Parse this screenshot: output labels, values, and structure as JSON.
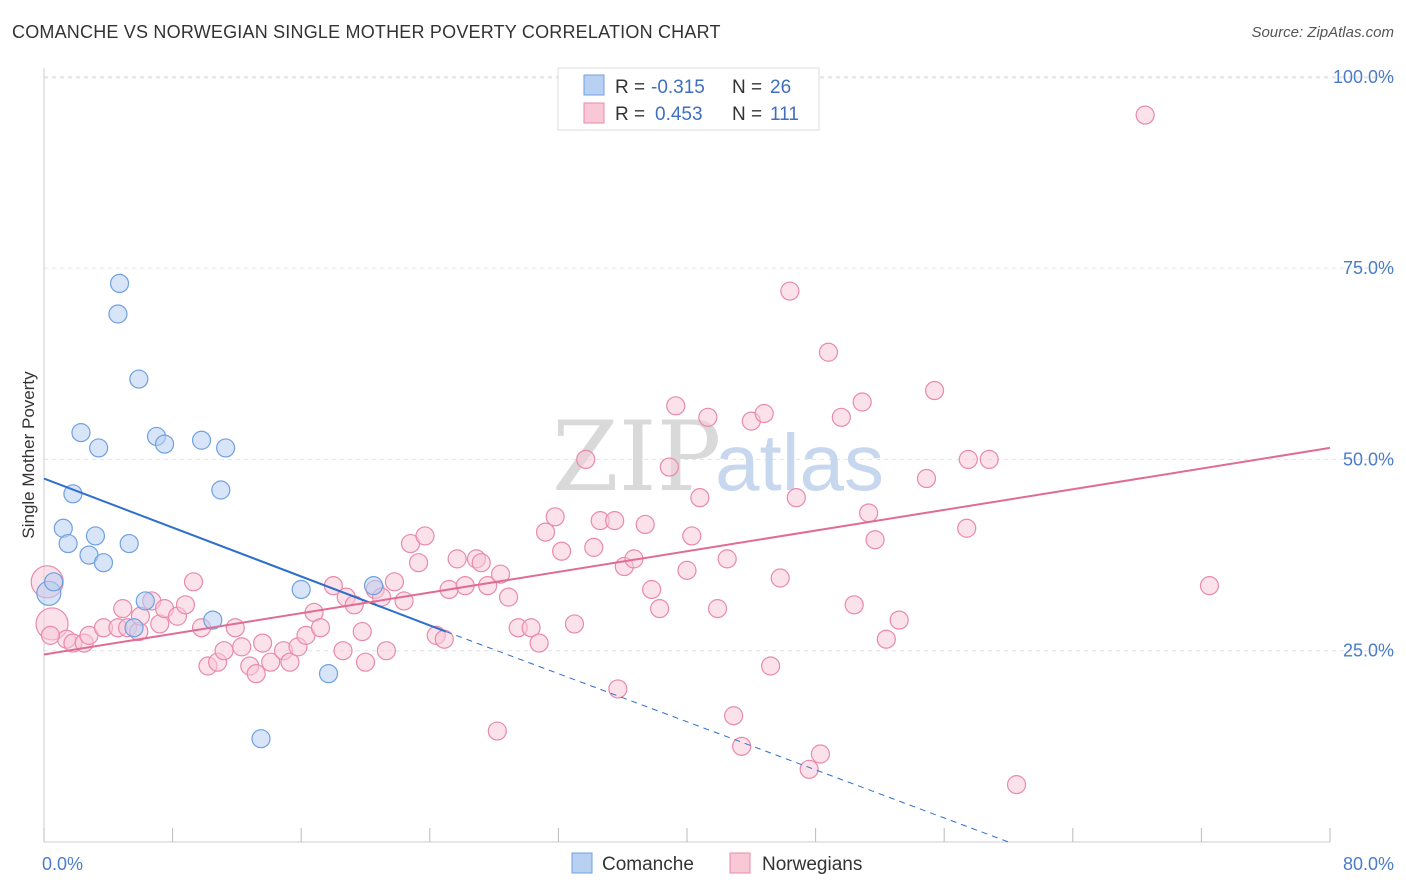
{
  "title": "COMANCHE VS NORWEGIAN SINGLE MOTHER POVERTY CORRELATION CHART",
  "source": "Source: ZipAtlas.com",
  "watermark": {
    "left": "ZIP",
    "right": "atlas"
  },
  "chart_data": {
    "type": "scatter",
    "ylabel": "Single Mother Poverty",
    "xlim": [
      0,
      80
    ],
    "ylim": [
      0,
      105
    ],
    "y_ticks": [
      {
        "value": 25,
        "label": "25.0%"
      },
      {
        "value": 50,
        "label": "50.0%"
      },
      {
        "value": 75,
        "label": "75.0%"
      },
      {
        "value": 100,
        "label": "100.0%"
      }
    ],
    "x_tick_labels": {
      "min": "0.0%",
      "max": "80.0%"
    },
    "legend": {
      "rows": [
        {
          "r_label": "R =",
          "r_value": "-0.315",
          "n_label": "N =",
          "n_value": "26"
        },
        {
          "r_label": "R =",
          "r_value": "0.453",
          "n_label": "N =",
          "n_value": "111"
        }
      ]
    },
    "series": [
      {
        "name": "Comanche",
        "color": "#6fa0e0",
        "fill": "#b8d0f2",
        "line_color": "#2f6fcc",
        "trend": {
          "x0": 0,
          "y0": 47.5,
          "x1": 25,
          "y1": 27.5,
          "dash_x1": 60,
          "dash_y1": 0
        },
        "points": [
          [
            0.3,
            32.5
          ],
          [
            0.6,
            34.0
          ],
          [
            1.2,
            41.0
          ],
          [
            1.5,
            39.0
          ],
          [
            1.8,
            45.5
          ],
          [
            2.3,
            53.5
          ],
          [
            2.8,
            37.5
          ],
          [
            3.2,
            40.0
          ],
          [
            3.4,
            51.5
          ],
          [
            3.7,
            36.5
          ],
          [
            4.6,
            69.0
          ],
          [
            4.7,
            73.0
          ],
          [
            5.3,
            39.0
          ],
          [
            5.6,
            28.0
          ],
          [
            5.9,
            60.5
          ],
          [
            6.3,
            31.5
          ],
          [
            7.0,
            53.0
          ],
          [
            7.5,
            52.0
          ],
          [
            9.8,
            52.5
          ],
          [
            10.5,
            29.0
          ],
          [
            11.0,
            46.0
          ],
          [
            11.3,
            51.5
          ],
          [
            13.5,
            13.5
          ],
          [
            16.0,
            33.0
          ],
          [
            17.7,
            22.0
          ],
          [
            20.5,
            33.5
          ]
        ]
      },
      {
        "name": "Norwegians",
        "color": "#e98aaa",
        "fill": "#f8c8d7",
        "line_color": "#e06c93",
        "trend": {
          "x0": 0,
          "y0": 24.5,
          "x1": 80,
          "y1": 51.5
        },
        "points": [
          [
            0.2,
            34.0
          ],
          [
            0.5,
            28.5
          ],
          [
            1.4,
            26.5
          ],
          [
            1.8,
            26.0
          ],
          [
            2.5,
            26.0
          ],
          [
            2.8,
            27.0
          ],
          [
            3.7,
            28.0
          ],
          [
            4.6,
            28.0
          ],
          [
            4.9,
            30.5
          ],
          [
            5.2,
            28.0
          ],
          [
            5.9,
            27.5
          ],
          [
            6.0,
            29.5
          ],
          [
            6.7,
            31.5
          ],
          [
            7.2,
            28.5
          ],
          [
            7.5,
            30.5
          ],
          [
            8.3,
            29.5
          ],
          [
            8.8,
            31.0
          ],
          [
            9.3,
            34.0
          ],
          [
            9.8,
            28.0
          ],
          [
            10.2,
            23.0
          ],
          [
            10.8,
            23.5
          ],
          [
            11.2,
            25.0
          ],
          [
            11.9,
            28.0
          ],
          [
            12.3,
            25.5
          ],
          [
            12.8,
            23.0
          ],
          [
            13.2,
            22.0
          ],
          [
            13.6,
            26.0
          ],
          [
            14.1,
            23.5
          ],
          [
            14.9,
            25.0
          ],
          [
            15.3,
            23.5
          ],
          [
            15.8,
            25.5
          ],
          [
            16.3,
            27.0
          ],
          [
            16.8,
            30.0
          ],
          [
            17.2,
            28.0
          ],
          [
            18.0,
            33.5
          ],
          [
            18.6,
            25.0
          ],
          [
            18.8,
            32.0
          ],
          [
            19.3,
            31.0
          ],
          [
            19.8,
            27.5
          ],
          [
            20.0,
            23.5
          ],
          [
            20.6,
            33.0
          ],
          [
            21.0,
            32.0
          ],
          [
            21.3,
            25.0
          ],
          [
            21.8,
            34.0
          ],
          [
            22.4,
            31.5
          ],
          [
            22.8,
            39.0
          ],
          [
            23.3,
            36.5
          ],
          [
            23.7,
            40.0
          ],
          [
            24.4,
            27.0
          ],
          [
            24.9,
            26.5
          ],
          [
            25.2,
            33.0
          ],
          [
            25.7,
            37.0
          ],
          [
            26.2,
            33.5
          ],
          [
            26.9,
            37.0
          ],
          [
            27.2,
            36.5
          ],
          [
            27.6,
            33.5
          ],
          [
            28.2,
            14.5
          ],
          [
            28.4,
            35.0
          ],
          [
            28.9,
            32.0
          ],
          [
            29.5,
            28.0
          ],
          [
            30.3,
            28.0
          ],
          [
            30.8,
            26.0
          ],
          [
            31.2,
            40.5
          ],
          [
            31.8,
            42.5
          ],
          [
            32.2,
            38.0
          ],
          [
            33.0,
            28.5
          ],
          [
            33.7,
            50.0
          ],
          [
            34.2,
            38.5
          ],
          [
            34.6,
            42.0
          ],
          [
            35.5,
            42.0
          ],
          [
            35.7,
            20.0
          ],
          [
            36.1,
            36.0
          ],
          [
            36.7,
            37.0
          ],
          [
            37.4,
            41.5
          ],
          [
            37.8,
            33.0
          ],
          [
            38.3,
            30.5
          ],
          [
            38.9,
            49.0
          ],
          [
            39.3,
            57.0
          ],
          [
            40.0,
            35.5
          ],
          [
            40.3,
            40.0
          ],
          [
            40.8,
            45.0
          ],
          [
            41.3,
            55.5
          ],
          [
            41.9,
            30.5
          ],
          [
            42.5,
            37.0
          ],
          [
            42.9,
            16.5
          ],
          [
            43.4,
            12.5
          ],
          [
            44.0,
            55.0
          ],
          [
            44.8,
            56.0
          ],
          [
            45.2,
            23.0
          ],
          [
            45.8,
            34.5
          ],
          [
            46.4,
            72.0
          ],
          [
            46.8,
            45.0
          ],
          [
            47.6,
            9.5
          ],
          [
            48.3,
            11.5
          ],
          [
            48.8,
            64.0
          ],
          [
            49.6,
            55.5
          ],
          [
            50.4,
            31.0
          ],
          [
            50.9,
            57.5
          ],
          [
            51.3,
            43.0
          ],
          [
            51.7,
            39.5
          ],
          [
            52.4,
            26.5
          ],
          [
            53.2,
            29.0
          ],
          [
            54.9,
            47.5
          ],
          [
            55.4,
            59.0
          ],
          [
            57.4,
            41.0
          ],
          [
            57.5,
            50.0
          ],
          [
            58.8,
            50.0
          ],
          [
            60.5,
            7.5
          ],
          [
            68.5,
            95.0
          ],
          [
            72.5,
            33.5
          ],
          [
            0.4,
            27.0
          ]
        ]
      }
    ]
  }
}
